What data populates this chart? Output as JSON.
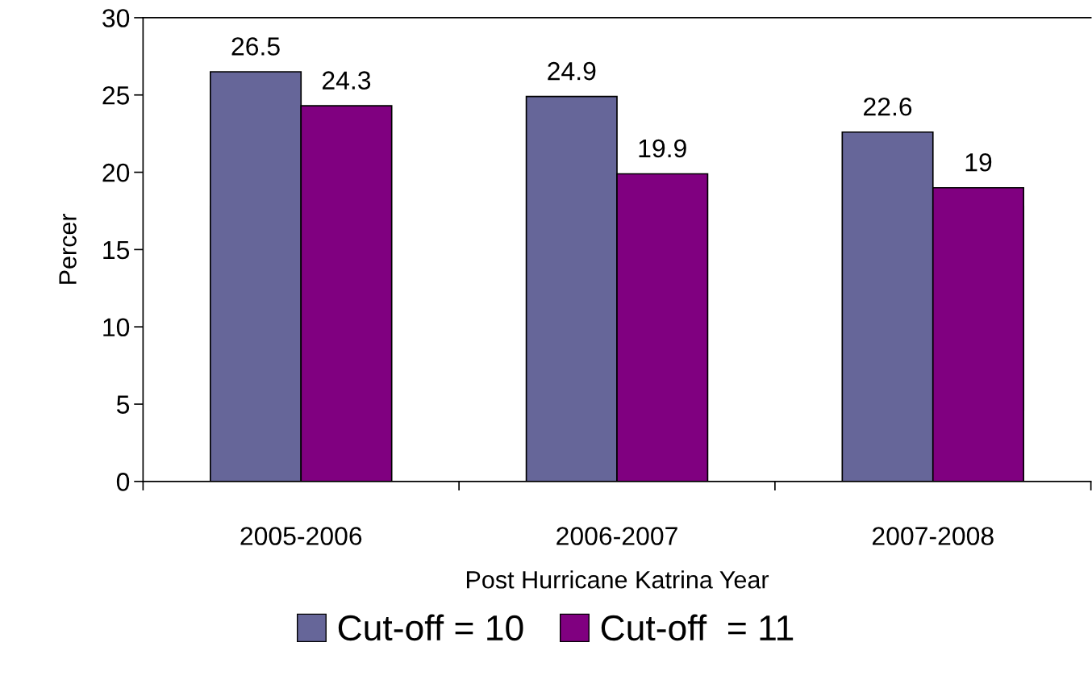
{
  "chart_data": {
    "type": "bar",
    "xlabel": "Post Hurricane Katrina Year",
    "ylabel": "Percer",
    "categories": [
      "2005-2006",
      "2006-2007",
      "2007-2008"
    ],
    "series": [
      {
        "name": "Cut-off = 10",
        "color": "#666699",
        "values": [
          26.5,
          24.9,
          22.6
        ]
      },
      {
        "name": "Cut-off  = 11",
        "color": "#800080",
        "values": [
          24.3,
          19.9,
          19
        ]
      }
    ],
    "ylim": [
      0,
      30
    ],
    "yticks": [
      0,
      5,
      10,
      15,
      20,
      25,
      30
    ],
    "data_labels": true,
    "legend": "bottom",
    "grid": false
  }
}
